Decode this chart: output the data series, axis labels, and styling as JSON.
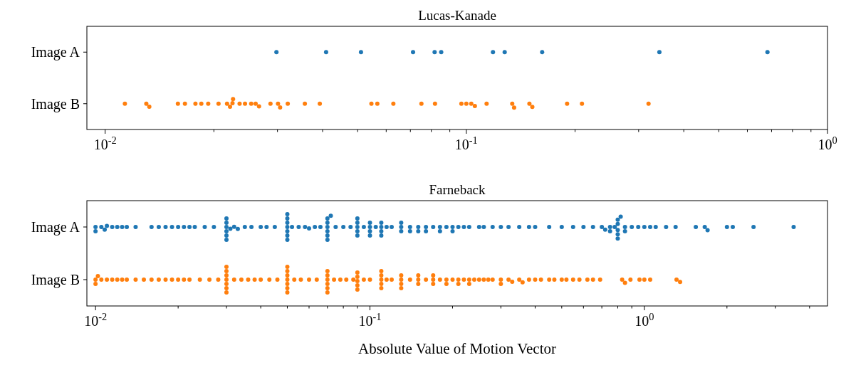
{
  "chart_data": [
    {
      "type": "scatter",
      "title": "Lucas-Kanade",
      "orientation": "horizontal",
      "categories": [
        "Image A",
        "Image B"
      ],
      "log": "x",
      "marker": "circle",
      "xlim": [
        0.0089,
        1
      ],
      "xticks": [
        {
          "value": 0.01,
          "label": "10$^{-2}$"
        },
        {
          "value": 0.02,
          "label": null
        },
        {
          "value": 0.03,
          "label": null
        },
        {
          "value": 0.04,
          "label": null
        },
        {
          "value": 0.05,
          "label": null
        },
        {
          "value": 0.06,
          "label": null
        },
        {
          "value": 0.07,
          "label": null
        },
        {
          "value": 0.08,
          "label": null
        },
        {
          "value": 0.09,
          "label": null
        },
        {
          "value": 0.1,
          "label": "10$^{-1}$"
        },
        {
          "value": 0.2,
          "label": null
        },
        {
          "value": 0.3,
          "label": null
        },
        {
          "value": 0.4,
          "label": null
        },
        {
          "value": 0.5,
          "label": null
        },
        {
          "value": 0.6,
          "label": null
        },
        {
          "value": 0.7,
          "label": null
        },
        {
          "value": 0.8,
          "label": null
        },
        {
          "value": 0.9,
          "label": null
        },
        {
          "value": 1,
          "label": "10$^{0}$"
        }
      ],
      "series": [
        {
          "color": "#1f77b4",
          "x": [
            "Image A",
            "Image A",
            "Image A",
            "Image A",
            "Image A",
            "Image A",
            "Image A",
            "Image A",
            "Image A",
            "Image A",
            "Image A"
          ],
          "values": [
            0.0298,
            0.0409,
            0.0511,
            0.0712,
            0.0817,
            0.0852,
            0.1185,
            0.1277,
            0.1622,
            0.3424,
            0.682
          ]
        },
        {
          "color": "#ff7f0e",
          "x": [
            "Image B",
            "Image B",
            "Image B",
            "Image B",
            "Image B",
            "Image B",
            "Image B",
            "Image B",
            "Image B",
            "Image B",
            "Image B",
            "Image B",
            "Image B",
            "Image B",
            "Image B",
            "Image B",
            "Image B",
            "Image B",
            "Image B",
            "Image B",
            "Image B",
            "Image B",
            "Image B",
            "Image B",
            "Image B",
            "Image B",
            "Image B",
            "Image B",
            "Image B",
            "Image B",
            "Image B",
            "Image B",
            "Image B",
            "Image B",
            "Image B",
            "Image B",
            "Image B",
            "Image B",
            "Image B",
            "Image B",
            "Image B"
          ],
          "values": [
            0.01134,
            0.013,
            0.01325,
            0.0159,
            0.01663,
            0.01778,
            0.01846,
            0.01929,
            0.0206,
            0.02175,
            0.02217,
            0.02252,
            0.0226,
            0.02356,
            0.02439,
            0.02537,
            0.0261,
            0.02667,
            0.02869,
            0.0301,
            0.03051,
            0.03203,
            0.03572,
            0.03929,
            0.0546,
            0.0567,
            0.0628,
            0.0751,
            0.0819,
            0.0969,
            0.1,
            0.1032,
            0.1056,
            0.1138,
            0.134,
            0.1356,
            0.1495,
            0.1523,
            0.1901,
            0.209,
            0.3195
          ]
        }
      ]
    },
    {
      "type": "scatter",
      "title": "Farneback",
      "xlabel": "Absolute Value of Motion Vector",
      "orientation": "horizontal",
      "categories": [
        "Image A",
        "Image B"
      ],
      "log": "x",
      "marker": "circle",
      "xlim": [
        0.0093,
        4.65
      ],
      "xticks": [
        {
          "value": 0.01,
          "label": "10$^{-2}$"
        },
        {
          "value": 0.02,
          "label": null
        },
        {
          "value": 0.03,
          "label": null
        },
        {
          "value": 0.04,
          "label": null
        },
        {
          "value": 0.05,
          "label": null
        },
        {
          "value": 0.06,
          "label": null
        },
        {
          "value": 0.07,
          "label": null
        },
        {
          "value": 0.08,
          "label": null
        },
        {
          "value": 0.09,
          "label": null
        },
        {
          "value": 0.1,
          "label": "10$^{-1}$"
        },
        {
          "value": 0.2,
          "label": null
        },
        {
          "value": 0.3,
          "label": null
        },
        {
          "value": 0.4,
          "label": null
        },
        {
          "value": 0.5,
          "label": null
        },
        {
          "value": 0.6,
          "label": null
        },
        {
          "value": 0.7,
          "label": null
        },
        {
          "value": 0.8,
          "label": null
        },
        {
          "value": 0.9,
          "label": null
        },
        {
          "value": 1,
          "label": "10$^{0}$"
        },
        {
          "value": 2,
          "label": null
        },
        {
          "value": 3,
          "label": null
        },
        {
          "value": 4,
          "label": null
        }
      ],
      "series": [
        {
          "color": "#1f77b4",
          "x": [
            "Image A",
            "Image A",
            "Image A",
            "Image A",
            "Image A",
            "Image A",
            "Image A",
            "Image A",
            "Image A",
            "Image A",
            "Image A",
            "Image A",
            "Image A",
            "Image A",
            "Image A",
            "Image A",
            "Image A",
            "Image A",
            "Image A",
            "Image A",
            "Image A",
            "Image A",
            "Image A",
            "Image A",
            "Image A",
            "Image A",
            "Image A",
            "Image A",
            "Image A",
            "Image A",
            "Image A",
            "Image A",
            "Image A",
            "Image A",
            "Image A",
            "Image A",
            "Image A",
            "Image A",
            "Image A",
            "Image A",
            "Image A",
            "Image A",
            "Image A",
            "Image A",
            "Image A",
            "Image A",
            "Image A",
            "Image A",
            "Image A",
            "Image A",
            "Image A",
            "Image A",
            "Image A",
            "Image A",
            "Image A",
            "Image A",
            "Image A",
            "Image A",
            "Image A",
            "Image A",
            "Image A",
            "Image A",
            "Image A",
            "Image A",
            "Image A",
            "Image A",
            "Image A",
            "Image A",
            "Image A",
            "Image A",
            "Image A",
            "Image A",
            "Image A",
            "Image A",
            "Image A",
            "Image A",
            "Image A",
            "Image A",
            "Image A",
            "Image A",
            "Image A",
            "Image A",
            "Image A",
            "Image A",
            "Image A",
            "Image A",
            "Image A",
            "Image A",
            "Image A",
            "Image A",
            "Image A",
            "Image A",
            "Image A",
            "Image A",
            "Image A",
            "Image A",
            "Image A",
            "Image A",
            "Image A",
            "Image A",
            "Image A",
            "Image A",
            "Image A",
            "Image A",
            "Image A",
            "Image A",
            "Image A",
            "Image A",
            "Image A",
            "Image A",
            "Image A",
            "Image A",
            "Image A",
            "Image A",
            "Image A",
            "Image A",
            "Image A",
            "Image A",
            "Image A",
            "Image A",
            "Image A",
            "Image A",
            "Image A",
            "Image A",
            "Image A",
            "Image A",
            "Image A",
            "Image A",
            "Image A",
            "Image A",
            "Image A",
            "Image A"
          ],
          "values": [
            0.01,
            0.01,
            0.0105,
            0.0108,
            0.011,
            0.0115,
            0.012,
            0.0125,
            0.013,
            0.014,
            0.016,
            0.017,
            0.018,
            0.019,
            0.02,
            0.021,
            0.022,
            0.023,
            0.025,
            0.027,
            0.03,
            0.03,
            0.03,
            0.03,
            0.03,
            0.03,
            0.031,
            0.032,
            0.033,
            0.035,
            0.037,
            0.04,
            0.042,
            0.045,
            0.05,
            0.05,
            0.05,
            0.05,
            0.05,
            0.05,
            0.05,
            0.052,
            0.055,
            0.058,
            0.06,
            0.063,
            0.066,
            0.07,
            0.07,
            0.07,
            0.07,
            0.07,
            0.07,
            0.072,
            0.075,
            0.08,
            0.085,
            0.09,
            0.09,
            0.09,
            0.09,
            0.09,
            0.095,
            0.1,
            0.1,
            0.1,
            0.1,
            0.105,
            0.11,
            0.11,
            0.11,
            0.11,
            0.115,
            0.12,
            0.13,
            0.13,
            0.13,
            0.14,
            0.14,
            0.15,
            0.15,
            0.16,
            0.16,
            0.17,
            0.18,
            0.18,
            0.19,
            0.2,
            0.2,
            0.21,
            0.22,
            0.23,
            0.25,
            0.26,
            0.28,
            0.3,
            0.32,
            0.35,
            0.38,
            0.4,
            0.45,
            0.5,
            0.55,
            0.6,
            0.65,
            0.7,
            0.72,
            0.75,
            0.75,
            0.78,
            0.8,
            0.8,
            0.8,
            0.8,
            0.8,
            0.82,
            0.85,
            0.85,
            0.9,
            0.95,
            1.0,
            1.05,
            1.1,
            1.2,
            1.3,
            1.54,
            1.66,
            1.7,
            2.0,
            2.1,
            2.5,
            3.5
          ]
        },
        {
          "color": "#ff7f0e",
          "x": [
            "Image B",
            "Image B",
            "Image B",
            "Image B",
            "Image B",
            "Image B",
            "Image B",
            "Image B",
            "Image B",
            "Image B",
            "Image B",
            "Image B",
            "Image B",
            "Image B",
            "Image B",
            "Image B",
            "Image B",
            "Image B",
            "Image B",
            "Image B",
            "Image B",
            "Image B",
            "Image B",
            "Image B",
            "Image B",
            "Image B",
            "Image B",
            "Image B",
            "Image B",
            "Image B",
            "Image B",
            "Image B",
            "Image B",
            "Image B",
            "Image B",
            "Image B",
            "Image B",
            "Image B",
            "Image B",
            "Image B",
            "Image B",
            "Image B",
            "Image B",
            "Image B",
            "Image B",
            "Image B",
            "Image B",
            "Image B",
            "Image B",
            "Image B",
            "Image B",
            "Image B",
            "Image B",
            "Image B",
            "Image B",
            "Image B",
            "Image B",
            "Image B",
            "Image B",
            "Image B",
            "Image B",
            "Image B",
            "Image B",
            "Image B",
            "Image B",
            "Image B",
            "Image B",
            "Image B",
            "Image B",
            "Image B",
            "Image B",
            "Image B",
            "Image B",
            "Image B",
            "Image B",
            "Image B",
            "Image B",
            "Image B",
            "Image B",
            "Image B",
            "Image B",
            "Image B",
            "Image B",
            "Image B",
            "Image B",
            "Image B",
            "Image B",
            "Image B",
            "Image B",
            "Image B",
            "Image B",
            "Image B",
            "Image B",
            "Image B",
            "Image B",
            "Image B",
            "Image B",
            "Image B",
            "Image B",
            "Image B",
            "Image B",
            "Image B",
            "Image B",
            "Image B",
            "Image B",
            "Image B",
            "Image B",
            "Image B",
            "Image B",
            "Image B",
            "Image B",
            "Image B",
            "Image B",
            "Image B",
            "Image B",
            "Image B",
            "Image B",
            "Image B",
            "Image B",
            "Image B",
            "Image B",
            "Image B"
          ],
          "values": [
            0.01,
            0.01,
            0.0102,
            0.0105,
            0.011,
            0.0115,
            0.012,
            0.0125,
            0.013,
            0.014,
            0.015,
            0.016,
            0.017,
            0.018,
            0.019,
            0.02,
            0.021,
            0.022,
            0.024,
            0.026,
            0.028,
            0.03,
            0.03,
            0.03,
            0.03,
            0.03,
            0.03,
            0.03,
            0.032,
            0.034,
            0.036,
            0.038,
            0.04,
            0.043,
            0.046,
            0.05,
            0.05,
            0.05,
            0.05,
            0.05,
            0.05,
            0.05,
            0.053,
            0.056,
            0.06,
            0.064,
            0.07,
            0.07,
            0.07,
            0.07,
            0.07,
            0.07,
            0.074,
            0.078,
            0.082,
            0.087,
            0.09,
            0.09,
            0.09,
            0.09,
            0.09,
            0.095,
            0.1,
            0.11,
            0.11,
            0.11,
            0.11,
            0.11,
            0.115,
            0.12,
            0.13,
            0.13,
            0.13,
            0.13,
            0.14,
            0.15,
            0.15,
            0.15,
            0.16,
            0.17,
            0.17,
            0.17,
            0.18,
            0.19,
            0.19,
            0.2,
            0.21,
            0.21,
            0.22,
            0.23,
            0.23,
            0.24,
            0.25,
            0.26,
            0.27,
            0.28,
            0.3,
            0.3,
            0.32,
            0.33,
            0.35,
            0.36,
            0.38,
            0.4,
            0.42,
            0.45,
            0.47,
            0.5,
            0.52,
            0.55,
            0.58,
            0.62,
            0.65,
            0.69,
            0.83,
            0.85,
            0.89,
            0.96,
            1.0,
            1.05,
            1.31,
            1.35
          ]
        }
      ]
    }
  ]
}
